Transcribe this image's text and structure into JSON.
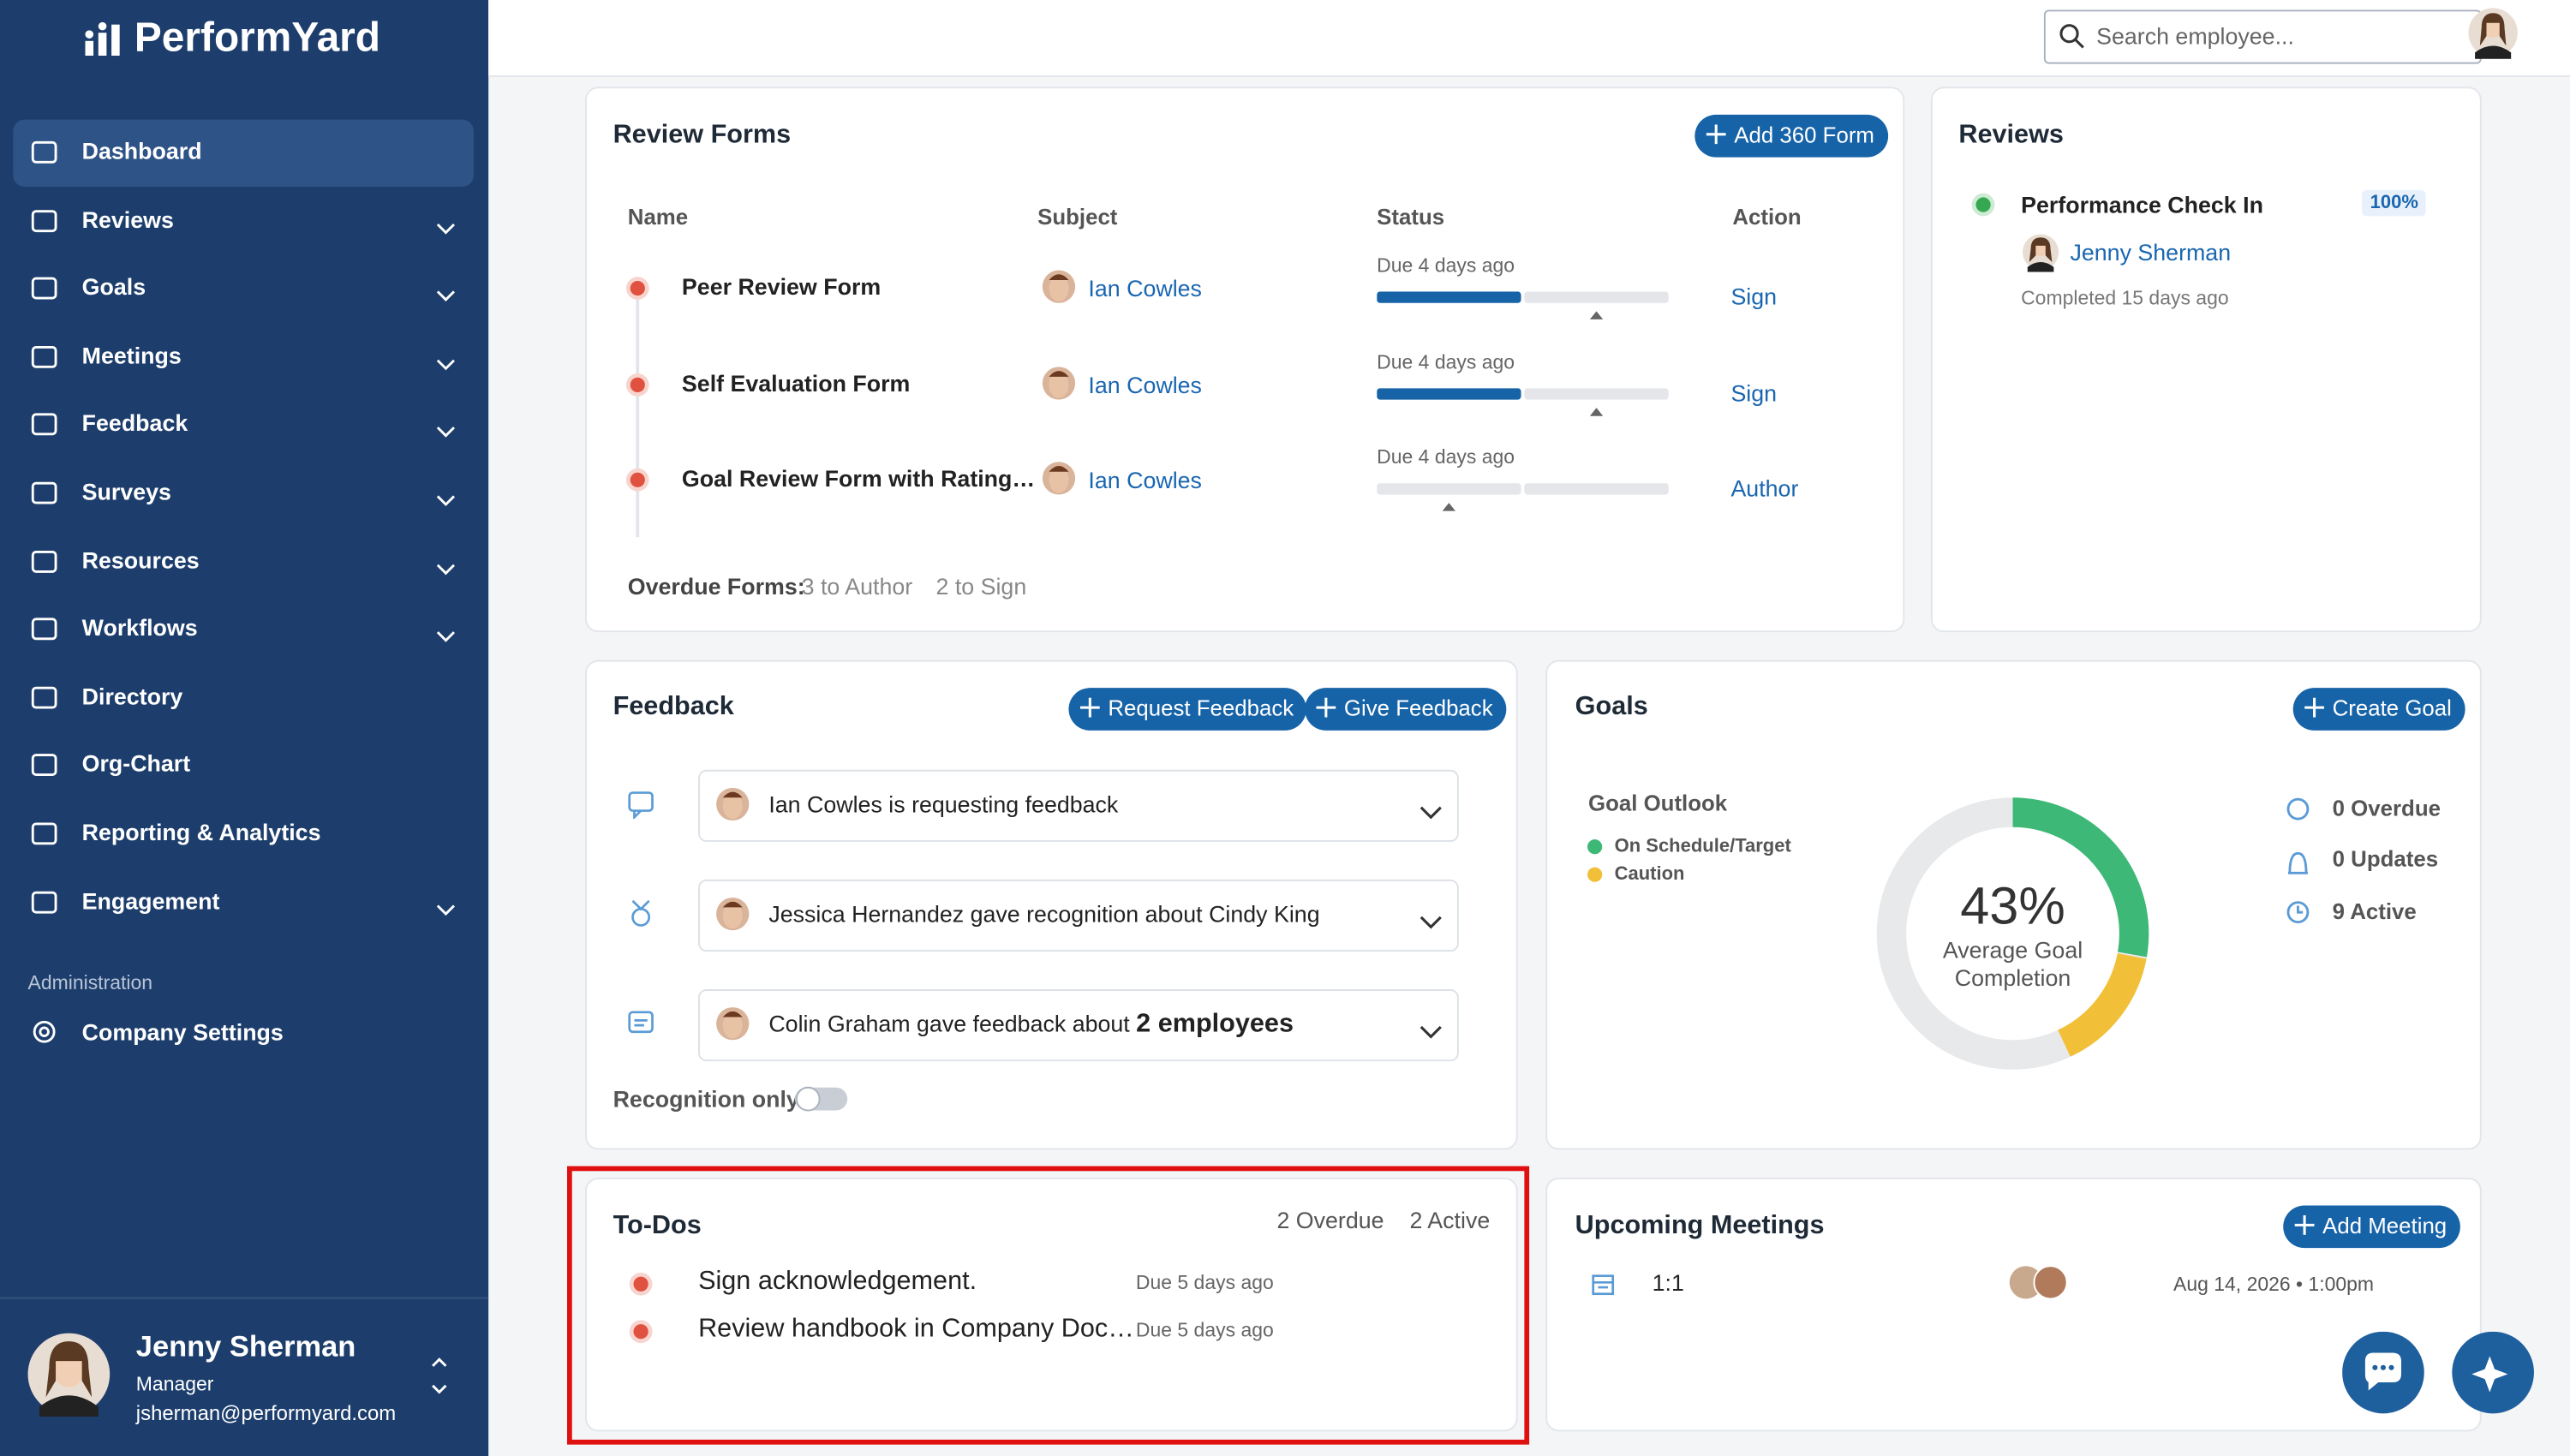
{
  "brand": "PerformYard",
  "search_placeholder": "Search employee...",
  "sidebar": {
    "items": [
      {
        "label": "Dashboard",
        "expandable": false
      },
      {
        "label": "Reviews",
        "expandable": true
      },
      {
        "label": "Goals",
        "expandable": true
      },
      {
        "label": "Meetings",
        "expandable": true
      },
      {
        "label": "Feedback",
        "expandable": true
      },
      {
        "label": "Surveys",
        "expandable": true
      },
      {
        "label": "Resources",
        "expandable": true
      },
      {
        "label": "Workflows",
        "expandable": true
      },
      {
        "label": "Directory",
        "expandable": false
      },
      {
        "label": "Org-Chart",
        "expandable": false
      },
      {
        "label": "Reporting & Analytics",
        "expandable": false
      },
      {
        "label": "Engagement",
        "expandable": true
      }
    ],
    "admin_heading": "Administration",
    "admin_items": [
      "Company Settings"
    ],
    "user": {
      "name": "Jenny Sherman",
      "role": "Manager",
      "email": "jsherman@performyard.com"
    }
  },
  "review_forms": {
    "title": "Review Forms",
    "add_button": "Add 360 Form",
    "columns": [
      "Name",
      "Subject",
      "Status",
      "Action"
    ],
    "rows": [
      {
        "name": "Peer Review Form",
        "subject": "Ian Cowles",
        "due": "Due 4 days ago",
        "action": "Sign"
      },
      {
        "name": "Self Evaluation Form",
        "subject": "Ian Cowles",
        "due": "Due 4 days ago",
        "action": "Sign"
      },
      {
        "name": "Goal Review Form with Rating…",
        "subject": "Ian Cowles",
        "due": "Due 4 days ago",
        "action": "Author"
      }
    ],
    "overdue_label": "Overdue Forms:",
    "overdue_author": "3 to Author",
    "overdue_sign": "2 to Sign"
  },
  "reviews": {
    "title": "Reviews",
    "item": "Performance Check In",
    "percent": "100%",
    "person": "Jenny Sherman",
    "completed": "Completed 15 days ago"
  },
  "feedback": {
    "title": "Feedback",
    "buttons": [
      "Request Feedback",
      "Give Feedback"
    ],
    "items": [
      {
        "text": "Ian Cowles is requesting feedback",
        "bold": null
      },
      {
        "text": "Jessica Hernandez gave recognition about Cindy King",
        "bold": null
      },
      {
        "text": "Colin Graham gave feedback about",
        "bold": "2 employees"
      }
    ],
    "toggle_label": "Recognition only"
  },
  "goals": {
    "title": "Goals",
    "create_button": "Create Goal",
    "outlook": "Goal Outlook",
    "legend": [
      "On Schedule/Target",
      "Caution"
    ],
    "completion": "43%",
    "completion_label": "Average Goal Completion",
    "stats": [
      "0 Overdue",
      "0 Updates",
      "9 Active"
    ]
  },
  "todos": {
    "title": "To-Dos",
    "overdue": "2 Overdue",
    "active": "2 Active",
    "items": [
      {
        "text": "Sign acknowledgement.",
        "due": "Due 5 days ago"
      },
      {
        "text": "Review handbook in Company Doc…",
        "due": "Due 5 days ago"
      }
    ]
  },
  "meetings": {
    "title": "Upcoming Meetings",
    "add_button": "Add Meeting",
    "items": [
      {
        "name": "1:1",
        "date": "Aug 14, 2026 • 1:00pm"
      }
    ]
  }
}
